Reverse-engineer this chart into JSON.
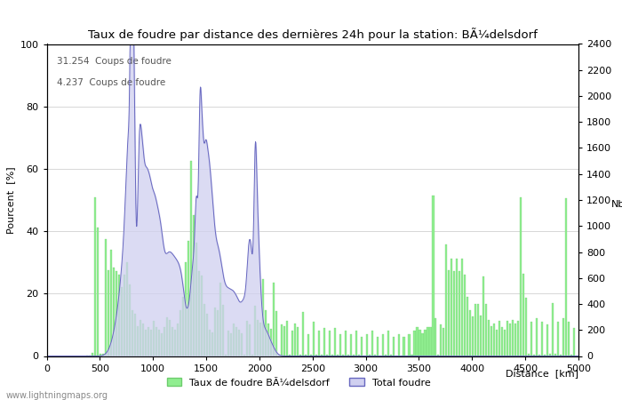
{
  "title": "Taux de foudre par distance des dernières 24h pour la station: BÃ¼delsdorf",
  "xlabel": "Distance  [km]",
  "ylabel_left": "Pourcent  [%]",
  "ylabel_right": "Nb",
  "annotation_line1": "31.254  Coups de foudre",
  "annotation_line2": "4.237  Coups de foudre",
  "legend_label1": "Taux de foudre BÃ¼delsdorf",
  "legend_label2": "Total foudre",
  "footer": "www.lightningmaps.org",
  "xlim": [
    0,
    5000
  ],
  "ylim_left": [
    0,
    100
  ],
  "ylim_right": [
    0,
    2400
  ],
  "xticks": [
    0,
    500,
    1000,
    1500,
    2000,
    2500,
    3000,
    3500,
    4000,
    4500,
    5000
  ],
  "yticks_left": [
    0,
    20,
    40,
    60,
    80,
    100
  ],
  "yticks_right": [
    0,
    200,
    400,
    600,
    800,
    1000,
    1200,
    1400,
    1600,
    1800,
    2000,
    2200,
    2400
  ],
  "bar_color": "#90ee90",
  "bar_edge_color": "#6dcc6d",
  "fill_color": "#d0d0f0",
  "line_color": "#6868c0",
  "background_color": "#ffffff",
  "grid_color": "#c8c8c8"
}
